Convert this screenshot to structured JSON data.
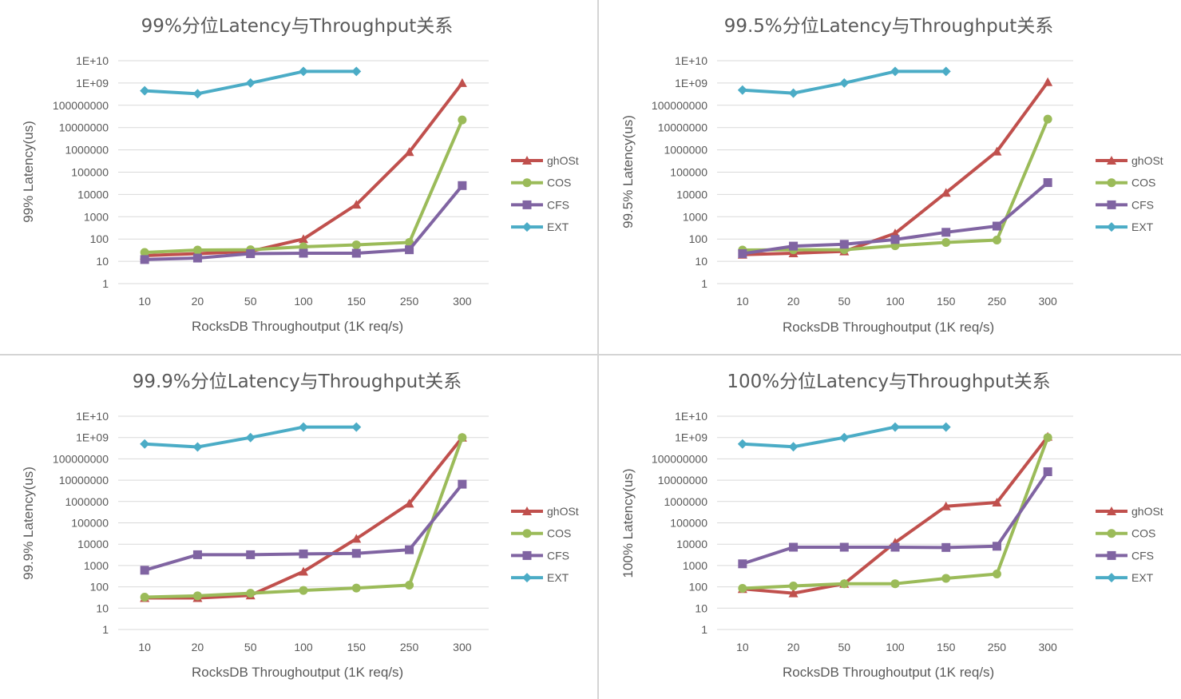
{
  "colors": {
    "ghOSt": "#c0504d",
    "COS": "#9bbb59",
    "CFS": "#8064a2",
    "EXT": "#4bacc6",
    "grid": "#d9d9d9",
    "text": "#595959"
  },
  "chart_data": [
    {
      "type": "line",
      "title": "99%分位Latency与Throughput关系",
      "xlabel": "RocksDB Throughoutput (1K req/s)",
      "ylabel": "99% Latency(us)",
      "y_scale": "log",
      "ylim": [
        1,
        10000000000
      ],
      "y_tick_labels": [
        "1",
        "10",
        "100",
        "1000",
        "10000",
        "100000",
        "1000000",
        "10000000",
        "100000000",
        "1E+09",
        "1E+10"
      ],
      "categories": [
        "10",
        "20",
        "50",
        "100",
        "150",
        "250",
        "300"
      ],
      "legend_position": "right",
      "grid": true,
      "series": [
        {
          "name": "ghOSt",
          "marker": "triangle",
          "values": [
            18,
            22,
            28,
            100,
            3500,
            800000,
            1000000000
          ]
        },
        {
          "name": "COS",
          "marker": "circle",
          "values": [
            25,
            32,
            33,
            45,
            55,
            70,
            22000000
          ]
        },
        {
          "name": "CFS",
          "marker": "square",
          "values": [
            12,
            14,
            22,
            23,
            23,
            33,
            25000
          ]
        },
        {
          "name": "EXT",
          "marker": "diamond",
          "values": [
            450000000,
            330000000,
            1000000000,
            3300000000,
            3300000000,
            null,
            null
          ]
        }
      ]
    },
    {
      "type": "line",
      "title": "99.5%分位Latency与Throughput关系",
      "xlabel": "RocksDB Throughoutput (1K req/s)",
      "ylabel": "99.5% Latency(us)",
      "y_scale": "log",
      "ylim": [
        1,
        10000000000
      ],
      "y_tick_labels": [
        "1",
        "10",
        "100",
        "1000",
        "10000",
        "100000",
        "1000000",
        "10000000",
        "100000000",
        "1E+09",
        "1E+10"
      ],
      "categories": [
        "10",
        "20",
        "50",
        "100",
        "150",
        "250",
        "300"
      ],
      "legend_position": "right",
      "grid": true,
      "series": [
        {
          "name": "ghOSt",
          "marker": "triangle",
          "values": [
            20,
            23,
            28,
            180,
            12000,
            850000,
            1100000000
          ]
        },
        {
          "name": "COS",
          "marker": "circle",
          "values": [
            32,
            33,
            33,
            50,
            70,
            90,
            24000000
          ]
        },
        {
          "name": "CFS",
          "marker": "square",
          "values": [
            22,
            48,
            58,
            95,
            200,
            380,
            34000
          ]
        },
        {
          "name": "EXT",
          "marker": "diamond",
          "values": [
            480000000,
            350000000,
            1000000000,
            3300000000,
            3300000000,
            null,
            null
          ]
        }
      ]
    },
    {
      "type": "line",
      "title": "99.9%分位Latency与Throughput关系",
      "xlabel": "RocksDB Throughoutput (1K req/s)",
      "ylabel": "99.9% Latency(us)",
      "y_scale": "log",
      "ylim": [
        1,
        10000000000
      ],
      "y_tick_labels": [
        "1",
        "10",
        "100",
        "1000",
        "10000",
        "100000",
        "1000000",
        "10000000",
        "100000000",
        "1E+09",
        "1E+10"
      ],
      "categories": [
        "10",
        "20",
        "50",
        "100",
        "150",
        "250",
        "300"
      ],
      "legend_position": "right",
      "grid": true,
      "series": [
        {
          "name": "ghOSt",
          "marker": "triangle",
          "values": [
            30,
            30,
            40,
            520,
            18000,
            800000,
            1000000000
          ]
        },
        {
          "name": "COS",
          "marker": "circle",
          "values": [
            33,
            38,
            50,
            68,
            88,
            120,
            1000000000
          ]
        },
        {
          "name": "CFS",
          "marker": "square",
          "values": [
            600,
            3200,
            3200,
            3500,
            3700,
            5500,
            6500000
          ]
        },
        {
          "name": "EXT",
          "marker": "diamond",
          "values": [
            500000000,
            360000000,
            1000000000,
            3100000000,
            3100000000,
            null,
            null
          ]
        }
      ]
    },
    {
      "type": "line",
      "title": "100%分位Latency与Throughput关系",
      "xlabel": "RocksDB Throughoutput (1K req/s)",
      "ylabel": "100% Latency(us)",
      "y_scale": "log",
      "ylim": [
        1,
        10000000000
      ],
      "y_tick_labels": [
        "1",
        "10",
        "100",
        "1000",
        "10000",
        "100000",
        "1000000",
        "10000000",
        "100000000",
        "1E+09",
        "1E+10"
      ],
      "categories": [
        "10",
        "20",
        "50",
        "100",
        "150",
        "250",
        "300"
      ],
      "legend_position": "right",
      "grid": true,
      "series": [
        {
          "name": "ghOSt",
          "marker": "triangle",
          "values": [
            80,
            50,
            140,
            12000,
            600000,
            900000,
            1100000000
          ]
        },
        {
          "name": "COS",
          "marker": "circle",
          "values": [
            85,
            110,
            140,
            140,
            250,
            400,
            1000000000
          ]
        },
        {
          "name": "CFS",
          "marker": "square",
          "values": [
            1200,
            7200,
            7200,
            7200,
            7000,
            8000,
            25000000
          ]
        },
        {
          "name": "EXT",
          "marker": "diamond",
          "values": [
            500000000,
            370000000,
            1000000000,
            3100000000,
            3100000000,
            null,
            null
          ]
        }
      ]
    }
  ]
}
